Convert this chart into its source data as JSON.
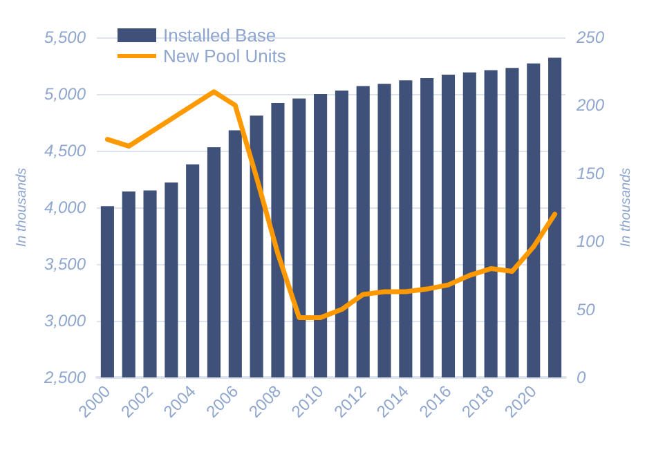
{
  "chart_data": {
    "type": "bar",
    "ylabel": "In thousands",
    "y2label": "In thousands",
    "categories": [
      "2000",
      null,
      "2002",
      null,
      "2004",
      null,
      "2006",
      null,
      "2008",
      null,
      "2010",
      null,
      "2012",
      null,
      "2014",
      null,
      "2016",
      null,
      "2018",
      null,
      "2020",
      null
    ],
    "series": [
      {
        "name": "Installed Base",
        "color": "#3f5179",
        "values": [
          4010,
          4140,
          4150,
          4220,
          4380,
          4530,
          4680,
          4810,
          4920,
          4960,
          5000,
          5030,
          5070,
          5090,
          5120,
          5140,
          5170,
          5190,
          5210,
          5230,
          5270,
          5320
        ]
      },
      {
        "name": "New Pool Units",
        "type": "line",
        "axis": "y2",
        "color": "#ff9900",
        "values": [
          175,
          170,
          180,
          190,
          200,
          210,
          200,
          147,
          91,
          44,
          44,
          50,
          61,
          63,
          63,
          65,
          68,
          75,
          80,
          78,
          96,
          120
        ]
      }
    ],
    "ylim": [
      2500,
      5500
    ],
    "yticks": [
      {
        "value": 2500,
        "label": "2,500"
      },
      {
        "value": 3000,
        "label": "3,000"
      },
      {
        "value": 3500,
        "label": "3,500"
      },
      {
        "value": 4000,
        "label": "4,000"
      },
      {
        "value": 4500,
        "label": "4,500"
      },
      {
        "value": 5000,
        "label": "5,000"
      },
      {
        "value": 5500,
        "label": "5,500"
      }
    ],
    "y2lim": [
      0,
      250
    ],
    "y2ticks": [
      0,
      50,
      100,
      150,
      200,
      250
    ],
    "grid": "y",
    "legend": "top left",
    "marker": "none",
    "line_style": "solid"
  }
}
